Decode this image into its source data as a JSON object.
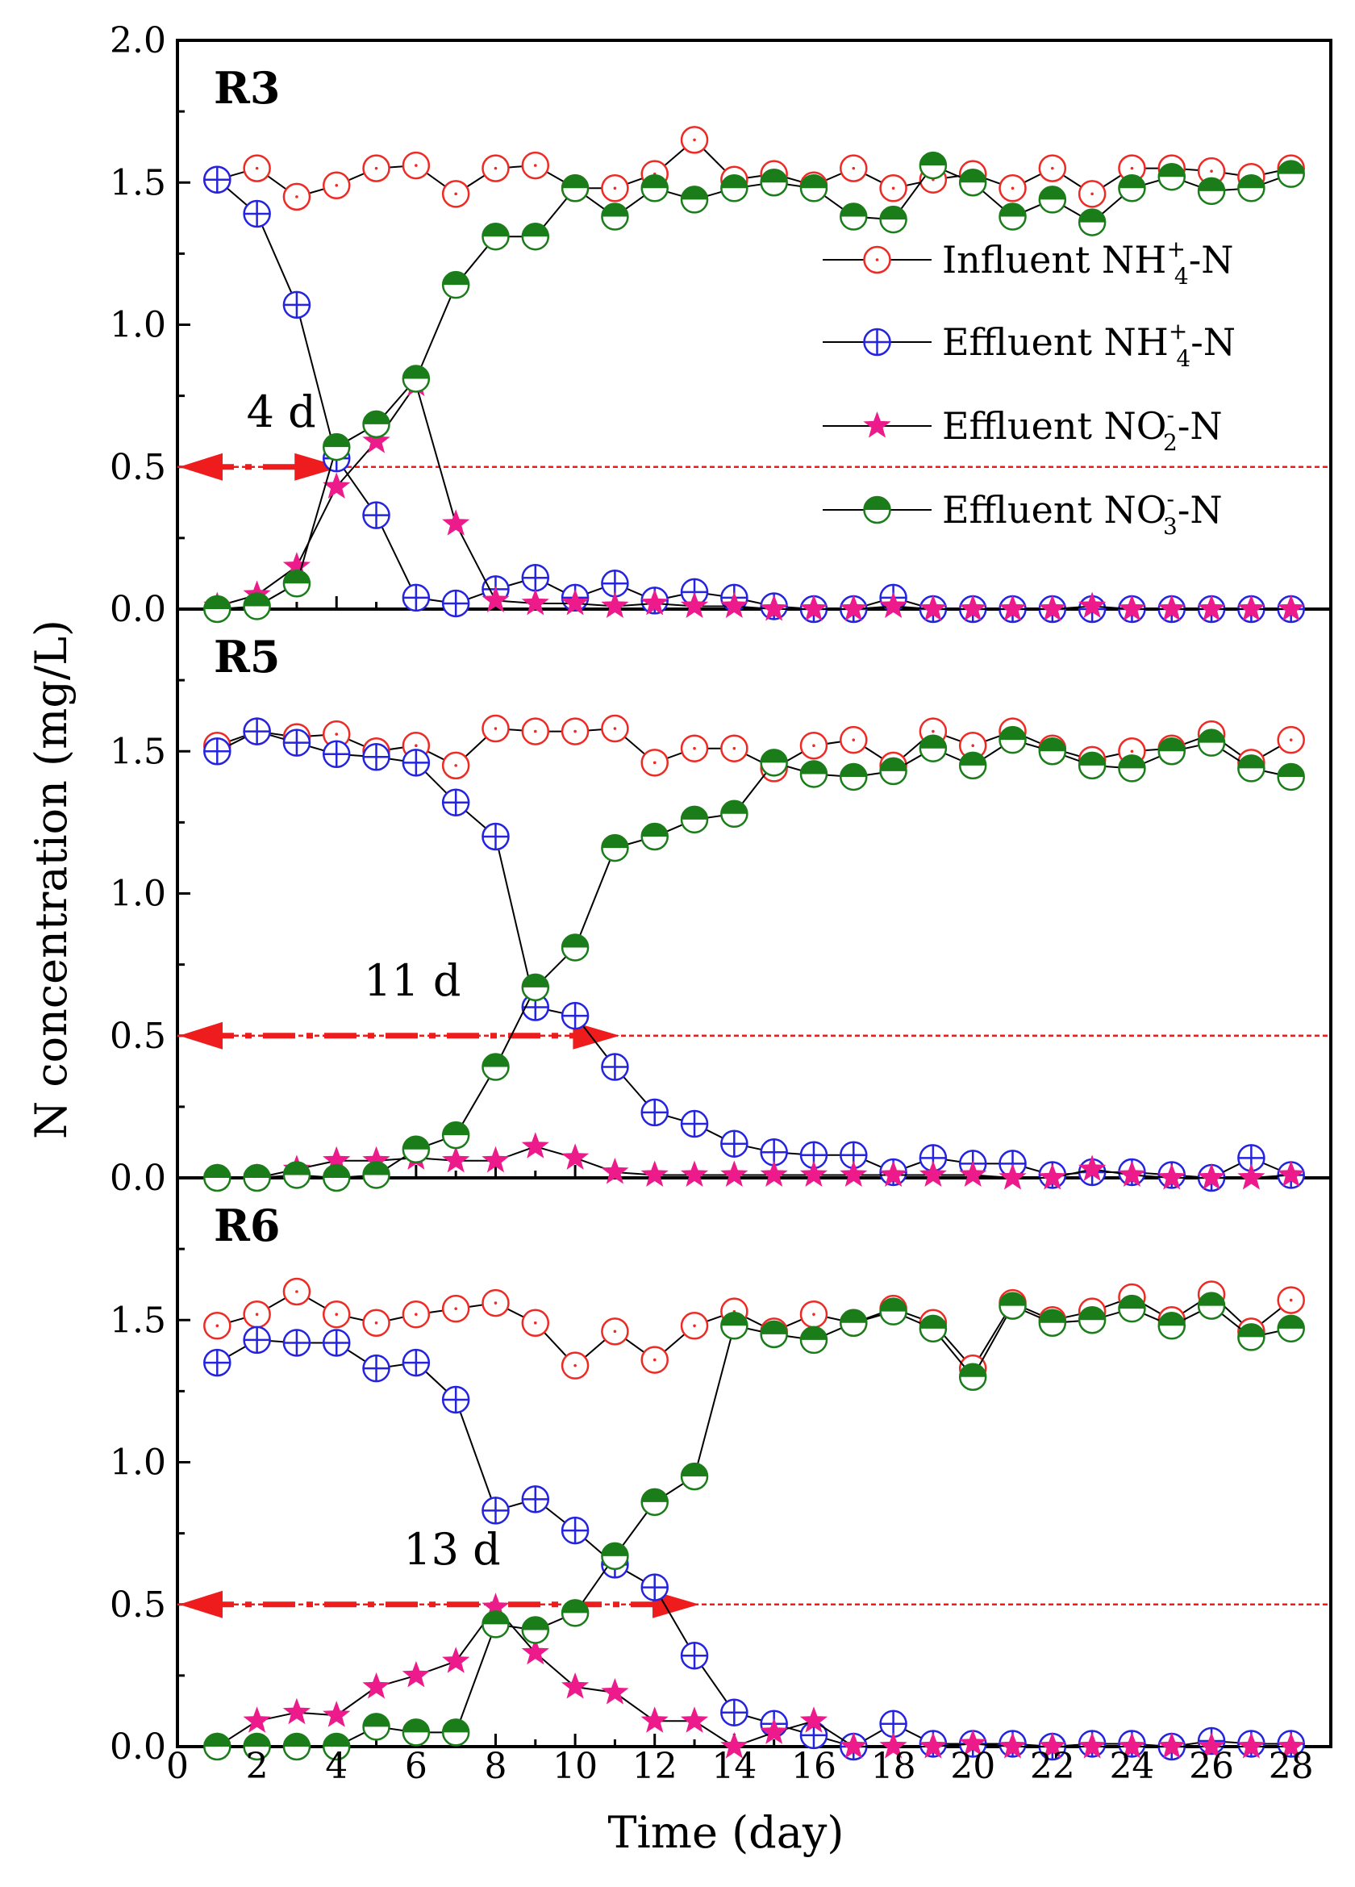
{
  "chart_data": {
    "type": "line",
    "xlabel": "Time (day)",
    "ylabel": "N concentration (mg/L)",
    "xlim": [
      0,
      29
    ],
    "ylim": [
      0,
      2.0
    ],
    "x_ticks": [
      "0",
      "2",
      "4",
      "6",
      "8",
      "10",
      "12",
      "14",
      "16",
      "18",
      "20",
      "22",
      "24",
      "26",
      "28"
    ],
    "y_ticks_top": [
      "0.0",
      "0.5",
      "1.0",
      "1.5",
      "2.0"
    ],
    "y_ticks": [
      "0.0",
      "0.5",
      "1.0",
      "1.5"
    ],
    "colors": {
      "influent_nh4": "#ee2a24",
      "effluent_nh4": "#2323e0",
      "effluent_no2": "#ec1a8a",
      "effluent_no3": "#1a7d1a",
      "threshold": "#ee1c1c"
    },
    "legend": [
      {
        "key": "influent_nh4",
        "prefix": "Influent NH",
        "sub": "4",
        "sup": "+",
        "suffix": "-N"
      },
      {
        "key": "effluent_nh4",
        "prefix": "Effluent NH",
        "sub": "4",
        "sup": "+",
        "suffix": "-N"
      },
      {
        "key": "effluent_no2",
        "prefix": "Effluent NO",
        "sub": "2",
        "sup": "-",
        "suffix": "-N"
      },
      {
        "key": "effluent_no3",
        "prefix": "Effluent NO",
        "sub": "3",
        "sup": "-",
        "suffix": "-N"
      }
    ],
    "x": [
      1,
      2,
      3,
      4,
      5,
      6,
      7,
      8,
      9,
      10,
      11,
      12,
      13,
      14,
      15,
      16,
      17,
      18,
      19,
      20,
      21,
      22,
      23,
      24,
      25,
      26,
      27,
      28
    ],
    "panels": [
      {
        "label": "R3",
        "threshold": 0.5,
        "annotation": "4 d",
        "arrow_from_day": 0,
        "arrow_to_day": 4,
        "series": {
          "influent_nh4": [
            1.51,
            1.55,
            1.45,
            1.49,
            1.55,
            1.56,
            1.46,
            1.55,
            1.56,
            1.48,
            1.48,
            1.53,
            1.65,
            1.51,
            1.53,
            1.49,
            1.55,
            1.48,
            1.51,
            1.53,
            1.48,
            1.55,
            1.46,
            1.55,
            1.55,
            1.54,
            1.52,
            1.55
          ],
          "effluent_nh4": [
            1.51,
            1.39,
            1.07,
            0.53,
            0.33,
            0.04,
            0.02,
            0.07,
            0.11,
            0.04,
            0.09,
            0.03,
            0.06,
            0.04,
            0.01,
            0.0,
            0.0,
            0.04,
            0.0,
            0.0,
            0.0,
            0.0,
            0.0,
            0.0,
            0.0,
            0.0,
            0.0,
            0.0
          ],
          "effluent_no2": [
            0.01,
            0.05,
            0.15,
            0.43,
            0.59,
            0.79,
            0.3,
            0.03,
            0.02,
            0.02,
            0.01,
            0.02,
            0.01,
            0.01,
            0.0,
            0.0,
            0.0,
            0.01,
            0.0,
            0.0,
            0.0,
            0.0,
            0.01,
            0.0,
            0.0,
            0.0,
            0.0,
            0.0
          ],
          "effluent_no3": [
            0.0,
            0.01,
            0.09,
            0.57,
            0.65,
            0.81,
            1.14,
            1.31,
            1.31,
            1.48,
            1.38,
            1.48,
            1.44,
            1.48,
            1.5,
            1.48,
            1.38,
            1.37,
            1.56,
            1.5,
            1.38,
            1.44,
            1.36,
            1.48,
            1.52,
            1.47,
            1.48,
            1.53
          ]
        }
      },
      {
        "label": "R5",
        "threshold": 0.5,
        "annotation": "11 d",
        "arrow_from_day": 0,
        "arrow_to_day": 11,
        "series": {
          "influent_nh4": [
            1.52,
            1.57,
            1.55,
            1.56,
            1.5,
            1.52,
            1.45,
            1.58,
            1.57,
            1.57,
            1.58,
            1.46,
            1.51,
            1.51,
            1.44,
            1.52,
            1.54,
            1.45,
            1.57,
            1.52,
            1.57,
            1.51,
            1.47,
            1.5,
            1.51,
            1.56,
            1.46,
            1.54
          ],
          "effluent_nh4": [
            1.5,
            1.57,
            1.53,
            1.49,
            1.48,
            1.46,
            1.32,
            1.2,
            0.6,
            0.57,
            0.39,
            0.23,
            0.19,
            0.12,
            0.09,
            0.08,
            0.08,
            0.02,
            0.07,
            0.05,
            0.05,
            0.01,
            0.02,
            0.02,
            0.01,
            0.0,
            0.07,
            0.01
          ],
          "effluent_no2": [
            0.0,
            0.0,
            0.03,
            0.06,
            0.06,
            0.07,
            0.06,
            0.06,
            0.11,
            0.07,
            0.02,
            0.01,
            0.01,
            0.01,
            0.01,
            0.01,
            0.01,
            0.01,
            0.01,
            0.01,
            0.0,
            0.0,
            0.03,
            0.01,
            0.0,
            0.0,
            0.0,
            0.01
          ],
          "effluent_no3": [
            0.0,
            0.0,
            0.01,
            0.0,
            0.01,
            0.1,
            0.15,
            0.39,
            0.67,
            0.81,
            1.16,
            1.2,
            1.26,
            1.28,
            1.46,
            1.42,
            1.41,
            1.43,
            1.51,
            1.45,
            1.54,
            1.5,
            1.45,
            1.44,
            1.5,
            1.53,
            1.44,
            1.41
          ]
        }
      },
      {
        "label": "R6",
        "threshold": 0.5,
        "annotation": "13 d",
        "arrow_from_day": 0,
        "arrow_to_day": 13,
        "series": {
          "influent_nh4": [
            1.48,
            1.52,
            1.6,
            1.52,
            1.49,
            1.52,
            1.54,
            1.56,
            1.49,
            1.34,
            1.46,
            1.36,
            1.48,
            1.53,
            1.46,
            1.52,
            1.49,
            1.54,
            1.49,
            1.33,
            1.56,
            1.5,
            1.53,
            1.58,
            1.5,
            1.59,
            1.46,
            1.57
          ],
          "effluent_nh4": [
            1.35,
            1.43,
            1.42,
            1.42,
            1.33,
            1.35,
            1.22,
            0.83,
            0.87,
            0.76,
            0.64,
            0.56,
            0.32,
            0.12,
            0.08,
            0.04,
            0.0,
            0.08,
            0.01,
            0.01,
            0.01,
            0.0,
            0.01,
            0.01,
            0.0,
            0.02,
            0.01,
            0.01
          ],
          "effluent_no2": [
            0.0,
            0.09,
            0.12,
            0.11,
            0.21,
            0.25,
            0.3,
            0.49,
            0.33,
            0.21,
            0.19,
            0.09,
            0.09,
            0.0,
            0.05,
            0.09,
            0.0,
            0.0,
            0.0,
            0.01,
            0.0,
            0.0,
            0.0,
            0.0,
            0.0,
            0.0,
            0.0,
            0.0
          ],
          "effluent_no3": [
            0.0,
            0.0,
            0.0,
            0.0,
            0.07,
            0.05,
            0.05,
            0.43,
            0.41,
            0.47,
            0.67,
            0.86,
            0.95,
            1.48,
            1.45,
            1.43,
            1.49,
            1.53,
            1.47,
            1.3,
            1.55,
            1.49,
            1.5,
            1.54,
            1.48,
            1.55,
            1.44,
            1.47
          ]
        }
      }
    ]
  }
}
